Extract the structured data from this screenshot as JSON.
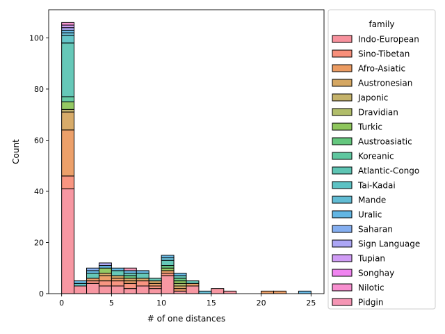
{
  "chart_data": {
    "type": "bar",
    "subtype": "stacked-histogram",
    "xlabel": "# of one distances",
    "ylabel": "Count",
    "xlim": [
      -1.3,
      26.3
    ],
    "ylim": [
      0,
      111
    ],
    "x_ticks": [
      0,
      5,
      10,
      15,
      20,
      25
    ],
    "y_ticks": [
      0,
      20,
      40,
      60,
      80,
      100
    ],
    "bin_width": 1.25,
    "bin_starts": [
      0,
      1.25,
      2.5,
      3.75,
      5,
      6.25,
      7.5,
      8.75,
      10,
      11.25,
      12.5,
      13.75,
      15,
      16.25,
      17.5,
      18.75,
      20,
      21.25,
      22.5,
      23.75
    ],
    "legend": {
      "title": "family",
      "placement": "outside-right"
    },
    "series": [
      {
        "name": "Indo-European",
        "color": "#f7919d",
        "values": [
          41,
          3,
          4,
          3,
          3,
          2,
          3,
          2,
          7,
          1,
          3,
          0,
          2,
          1,
          0,
          0,
          0,
          0,
          0,
          0
        ]
      },
      {
        "name": "Sino-Tibetan",
        "color": "#f88f7a",
        "values": [
          5,
          0,
          1,
          2,
          2,
          2,
          2,
          1,
          1,
          0,
          0,
          0,
          0,
          0,
          0,
          0,
          0,
          0,
          0,
          0
        ]
      },
      {
        "name": "Afro-Asiatic",
        "color": "#eb9b62",
        "values": [
          18,
          0,
          1,
          2,
          1,
          1,
          0,
          1,
          1,
          1,
          1,
          0,
          0,
          0,
          0,
          0,
          1,
          1,
          0,
          0
        ]
      },
      {
        "name": "Austronesian",
        "color": "#d5a762",
        "values": [
          7,
          0,
          0,
          1,
          1,
          1,
          1,
          1,
          0,
          1,
          0,
          0,
          0,
          0,
          0,
          0,
          0,
          0,
          0,
          0
        ]
      },
      {
        "name": "Japonic",
        "color": "#c4b26a",
        "values": [
          1,
          0,
          0,
          0,
          0,
          0,
          0,
          0,
          0,
          0,
          0,
          0,
          0,
          0,
          0,
          0,
          0,
          0,
          0,
          0
        ]
      },
      {
        "name": "Dravidian",
        "color": "#b1bd6a",
        "values": [
          0,
          0,
          0,
          0,
          0,
          0,
          0,
          0,
          0,
          1,
          0,
          0,
          0,
          0,
          0,
          0,
          0,
          0,
          0,
          0
        ]
      },
      {
        "name": "Turkic",
        "color": "#8ec65c",
        "values": [
          3,
          0,
          0,
          2,
          0,
          0,
          0,
          0,
          1,
          1,
          0,
          0,
          0,
          0,
          0,
          0,
          0,
          0,
          0,
          0
        ]
      },
      {
        "name": "Austroasiatic",
        "color": "#64c77e",
        "values": [
          0,
          0,
          0,
          0,
          0,
          1,
          0,
          0,
          1,
          1,
          0,
          0,
          0,
          0,
          0,
          0,
          0,
          0,
          0,
          0
        ]
      },
      {
        "name": "Koreanic",
        "color": "#5ec79f",
        "values": [
          2,
          0,
          0,
          0,
          0,
          0,
          0,
          0,
          0,
          0,
          0,
          0,
          0,
          0,
          0,
          0,
          0,
          0,
          0,
          0
        ]
      },
      {
        "name": "Atlantic-Congo",
        "color": "#5ec5b4",
        "values": [
          21,
          0,
          2,
          0,
          2,
          1,
          2,
          1,
          2,
          1,
          1,
          0,
          0,
          0,
          0,
          0,
          0,
          0,
          0,
          0
        ]
      },
      {
        "name": "Tai-Kadai",
        "color": "#5cc2c4",
        "values": [
          3,
          1,
          0,
          0,
          0,
          0,
          0,
          0,
          0,
          0,
          0,
          0,
          0,
          0,
          0,
          0,
          0,
          0,
          0,
          0
        ]
      },
      {
        "name": "Mande",
        "color": "#61bcd4",
        "values": [
          1,
          0,
          0,
          0,
          0,
          0,
          0,
          0,
          1,
          0,
          0,
          1,
          0,
          0,
          0,
          0,
          0,
          0,
          0,
          0
        ]
      },
      {
        "name": "Uralic",
        "color": "#62b6e4",
        "values": [
          1,
          1,
          1,
          1,
          1,
          1,
          1,
          0,
          1,
          1,
          0,
          0,
          0,
          0,
          0,
          0,
          0,
          0,
          0,
          1
        ]
      },
      {
        "name": "Saharan",
        "color": "#84aef0",
        "values": [
          0,
          0,
          1,
          0,
          0,
          0,
          0,
          0,
          0,
          0,
          0,
          0,
          0,
          0,
          0,
          0,
          0,
          0,
          0,
          0
        ]
      },
      {
        "name": "Sign Language",
        "color": "#aca6f5",
        "values": [
          1,
          0,
          0,
          1,
          0,
          0,
          0,
          0,
          0,
          0,
          0,
          0,
          0,
          0,
          0,
          0,
          0,
          0,
          0,
          0
        ]
      },
      {
        "name": "Tupian",
        "color": "#d09cf5",
        "values": [
          1,
          0,
          0,
          0,
          0,
          0,
          0,
          0,
          0,
          0,
          0,
          0,
          0,
          0,
          0,
          0,
          0,
          0,
          0,
          0
        ]
      },
      {
        "name": "Songhay",
        "color": "#f084f0",
        "values": [
          0,
          0,
          0,
          0,
          0,
          0,
          0,
          0,
          0,
          0,
          0,
          0,
          0,
          0,
          0,
          0,
          0,
          0,
          0,
          0
        ]
      },
      {
        "name": "Nilotic",
        "color": "#f78fcf",
        "values": [
          1,
          0,
          0,
          0,
          0,
          0,
          0,
          0,
          0,
          0,
          0,
          0,
          0,
          0,
          0,
          0,
          0,
          0,
          0,
          0
        ]
      },
      {
        "name": "Pidgin",
        "color": "#f595b4",
        "values": [
          0,
          0,
          0,
          0,
          0,
          1,
          0,
          0,
          0,
          0,
          0,
          0,
          0,
          0,
          0,
          0,
          0,
          0,
          0,
          0
        ]
      }
    ]
  }
}
